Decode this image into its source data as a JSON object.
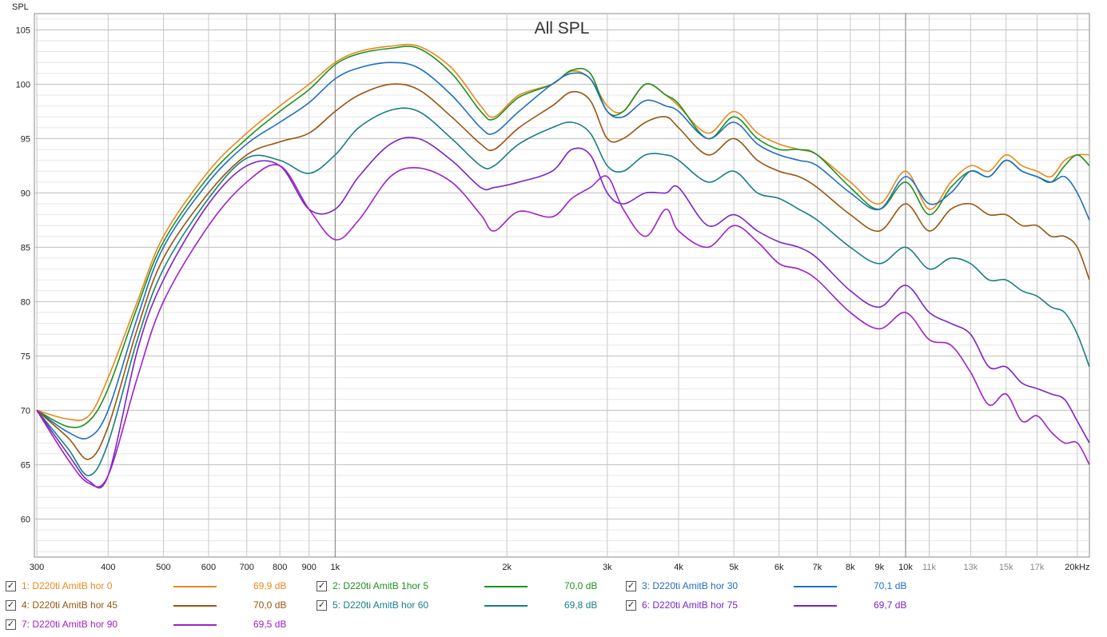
{
  "chart_data": {
    "type": "line",
    "title": "All SPL",
    "ylabel": "SPL",
    "xlabel": "",
    "xscale": "log",
    "xlim": [
      297,
      21000
    ],
    "ylim": [
      56.5,
      106.5
    ],
    "grid": true,
    "x_ticks": [
      "300",
      "400",
      "500",
      "600",
      "700",
      "800",
      "900",
      "1k",
      "2k",
      "3k",
      "4k",
      "5k",
      "6k",
      "7k",
      "8k",
      "9k",
      "10k",
      "11k",
      "13k",
      "15k",
      "17k",
      "20kHz"
    ],
    "y_ticks": [
      "60",
      "65",
      "70",
      "75",
      "80",
      "85",
      "90",
      "95",
      "100",
      "105"
    ],
    "series": [
      {
        "name": "1: D220ti AmitB hor 0",
        "color": "#e8891c",
        "level": "69,9 dB",
        "x": [
          300,
          340,
          370,
          400,
          450,
          500,
          600,
          700,
          800,
          900,
          1000,
          1100,
          1250,
          1400,
          1600,
          1800,
          1900,
          2100,
          2400,
          2600,
          2800,
          3000,
          3200,
          3500,
          3800,
          4000,
          4500,
          5000,
          5500,
          6000,
          6500,
          7000,
          8000,
          9000,
          10000,
          11000,
          12000,
          13000,
          14000,
          15000,
          16000,
          17000,
          18000,
          19000,
          20000,
          21000
        ],
        "y": [
          70,
          69.2,
          69.5,
          73,
          80,
          86,
          92,
          95.5,
          98,
          100,
          102,
          103,
          103.5,
          103.5,
          101.5,
          98,
          97,
          99,
          100,
          101.2,
          100.5,
          98,
          97.5,
          100,
          99,
          98,
          95.5,
          97.5,
          95.5,
          94.5,
          94,
          93.5,
          91,
          89,
          92,
          88.5,
          91,
          92.5,
          92,
          93.5,
          92.5,
          92,
          91.5,
          93,
          93.5,
          93.5
        ]
      },
      {
        "name": "2: D220ti AmitB 1hor 5",
        "color": "#1e9020",
        "level": "70,0 dB",
        "x": [
          300,
          340,
          370,
          400,
          450,
          500,
          600,
          700,
          800,
          900,
          1000,
          1100,
          1250,
          1400,
          1600,
          1800,
          1900,
          2100,
          2400,
          2600,
          2800,
          3000,
          3200,
          3500,
          3800,
          4000,
          4500,
          5000,
          5500,
          6000,
          6500,
          7000,
          8000,
          9000,
          10000,
          11000,
          12000,
          13000,
          14000,
          15000,
          16000,
          17000,
          18000,
          19000,
          20000,
          21000
        ],
        "y": [
          70,
          68.5,
          69,
          72,
          79.5,
          85.5,
          91.5,
          95,
          97.5,
          99.5,
          101.8,
          102.8,
          103.3,
          103.3,
          101,
          97.5,
          96.8,
          98.8,
          100,
          101.3,
          101,
          97.5,
          97.5,
          100,
          99,
          98.2,
          95,
          97,
          95,
          94,
          94,
          93.5,
          90.5,
          88.5,
          91,
          88,
          90.5,
          92,
          91.5,
          93,
          92,
          91.5,
          91,
          92.5,
          93.5,
          92.5
        ]
      },
      {
        "name": "3: D220ti AmitB hor 30",
        "color": "#2070c0",
        "level": "70,1 dB",
        "x": [
          300,
          340,
          370,
          400,
          450,
          500,
          600,
          700,
          800,
          900,
          1000,
          1100,
          1250,
          1400,
          1600,
          1800,
          1900,
          2100,
          2400,
          2600,
          2800,
          3000,
          3200,
          3500,
          3800,
          4000,
          4500,
          5000,
          5500,
          6000,
          6500,
          7000,
          8000,
          9000,
          10000,
          11000,
          12000,
          13000,
          14000,
          15000,
          16000,
          17000,
          18000,
          19000,
          20000,
          21000
        ],
        "y": [
          70,
          68,
          67.5,
          70,
          78.5,
          85,
          91,
          94.5,
          96.5,
          98.3,
          100.5,
          101.5,
          102,
          101.5,
          99,
          96,
          95.5,
          97.5,
          100,
          101,
          100.5,
          97.5,
          97,
          98.5,
          98,
          97.5,
          95,
          96.5,
          94.5,
          93.5,
          93,
          92.5,
          90,
          88.5,
          91.5,
          89,
          90,
          92,
          91.5,
          93,
          92,
          91.5,
          91,
          91.5,
          90,
          87.5
        ]
      },
      {
        "name": "4: D220ti AmitB hor 45",
        "color": "#995511",
        "level": "70,0 dB",
        "x": [
          300,
          340,
          370,
          400,
          450,
          500,
          600,
          700,
          800,
          900,
          1000,
          1100,
          1250,
          1400,
          1600,
          1800,
          1900,
          2100,
          2400,
          2600,
          2800,
          3000,
          3200,
          3500,
          3800,
          4000,
          4500,
          5000,
          5500,
          6000,
          6500,
          7000,
          8000,
          9000,
          10000,
          11000,
          12000,
          13000,
          14000,
          15000,
          16000,
          17000,
          18000,
          19000,
          20000,
          21000
        ],
        "y": [
          70,
          67.5,
          65.5,
          68.5,
          77.5,
          84,
          90,
          93.5,
          94.7,
          95.5,
          97.5,
          99,
          100,
          99.5,
          97,
          94.5,
          94,
          96,
          98,
          99.3,
          98.5,
          95,
          95,
          96.5,
          97,
          96,
          93.5,
          95,
          93,
          92,
          91.5,
          90.5,
          88,
          86.5,
          89,
          86.5,
          88.5,
          89,
          88,
          88,
          87,
          87,
          86,
          86,
          85,
          82
        ]
      },
      {
        "name": "5: D220ti AmitB  hor 60",
        "color": "#168080",
        "level": "69,8 dB",
        "x": [
          300,
          340,
          370,
          400,
          450,
          500,
          600,
          700,
          800,
          900,
          1000,
          1100,
          1250,
          1400,
          1600,
          1800,
          1900,
          2100,
          2400,
          2600,
          2800,
          3000,
          3200,
          3500,
          3800,
          4000,
          4500,
          5000,
          5500,
          6000,
          6500,
          7000,
          8000,
          9000,
          10000,
          11000,
          12000,
          13000,
          14000,
          15000,
          16000,
          17000,
          18000,
          19000,
          20000,
          21000
        ],
        "y": [
          70,
          66.5,
          64,
          67,
          76.5,
          83,
          89.5,
          93.2,
          93,
          91.8,
          93.5,
          96,
          97.6,
          97.5,
          95,
          92.5,
          92.5,
          94.5,
          96,
          96.5,
          95.5,
          92.5,
          92,
          93.5,
          93.5,
          93,
          91,
          92,
          90,
          89.5,
          88.5,
          87.5,
          85,
          83.5,
          85,
          83,
          84,
          83.5,
          82,
          82,
          81,
          80.5,
          79.5,
          79,
          77,
          74
        ]
      },
      {
        "name": "6: D220ti AmitB hor 75",
        "color": "#7a25c8",
        "level": "69,7 dB",
        "x": [
          300,
          340,
          370,
          400,
          450,
          500,
          600,
          700,
          800,
          900,
          1000,
          1100,
          1250,
          1400,
          1600,
          1800,
          1900,
          2100,
          2400,
          2600,
          2800,
          3000,
          3200,
          3500,
          3800,
          4000,
          4500,
          5000,
          5500,
          6000,
          6500,
          7000,
          8000,
          9000,
          10000,
          11000,
          12000,
          13000,
          14000,
          15000,
          16000,
          17000,
          18000,
          19000,
          20000,
          21000
        ],
        "y": [
          70,
          66,
          63.5,
          64,
          75.5,
          82,
          89,
          92.5,
          92.5,
          88.5,
          88.5,
          91.5,
          94.5,
          95,
          93,
          90.5,
          90.5,
          91,
          92,
          94,
          93.5,
          90,
          89,
          90,
          90,
          90.5,
          87,
          88,
          86.5,
          85.5,
          85,
          84,
          81,
          79.5,
          81.5,
          79,
          78,
          77,
          74,
          74,
          72.5,
          72,
          71.5,
          71,
          69,
          67
        ]
      },
      {
        "name": "7: D220ti AmitB hor 90",
        "color": "#a020c8",
        "level": "69,5 dB",
        "x": [
          300,
          340,
          370,
          400,
          450,
          500,
          600,
          700,
          800,
          900,
          1000,
          1100,
          1250,
          1400,
          1600,
          1800,
          1900,
          2100,
          2400,
          2600,
          2800,
          3000,
          3200,
          3500,
          3800,
          4000,
          4500,
          5000,
          5500,
          6000,
          6500,
          7000,
          8000,
          9000,
          10000,
          11000,
          12000,
          13000,
          14000,
          15000,
          16000,
          17000,
          18000,
          19000,
          20000,
          21000
        ],
        "y": [
          70,
          65.5,
          63.3,
          64,
          73,
          80,
          87,
          91,
          92.5,
          88.5,
          85.7,
          87.5,
          91.5,
          92.3,
          91,
          88,
          86.5,
          88.3,
          87.8,
          89.5,
          90.5,
          91.5,
          88.5,
          86,
          88.5,
          86.5,
          85,
          87,
          85.5,
          83.5,
          83,
          82,
          79,
          77.5,
          79,
          76.5,
          76,
          73.5,
          70.5,
          71.5,
          69,
          69.5,
          68,
          67,
          67,
          65
        ]
      }
    ]
  }
}
